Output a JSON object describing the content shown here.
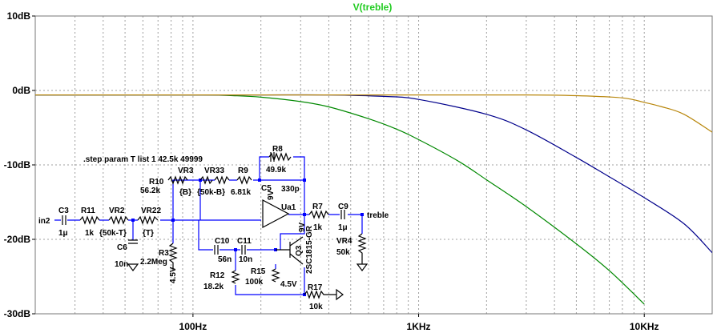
{
  "chart_data": {
    "type": "line",
    "title": "V(treble)",
    "title_color": "#22cc22",
    "x_scale": "log",
    "xlim": [
      20,
      20000
    ],
    "ylim": [
      -30,
      10
    ],
    "x_ticks": [
      {
        "value": 100,
        "label": "100Hz"
      },
      {
        "value": 1000,
        "label": "1KHz"
      },
      {
        "value": 10000,
        "label": "10KHz"
      }
    ],
    "y_ticks": [
      {
        "value": 10,
        "label": "10dB"
      },
      {
        "value": 0,
        "label": "0dB"
      },
      {
        "value": -10,
        "label": "-10dB"
      },
      {
        "value": -20,
        "label": "-20dB"
      },
      {
        "value": -30,
        "label": "-30dB"
      }
    ],
    "grid": true,
    "series": [
      {
        "color": "#008800",
        "x": [
          20,
          50,
          100,
          150,
          200,
          300,
          400,
          600,
          800,
          1000,
          1500,
          2000,
          3000,
          5000,
          7000,
          10000
        ],
        "y": [
          -0.6,
          -0.6,
          -0.6,
          -0.7,
          -0.9,
          -1.5,
          -2.2,
          -3.8,
          -5.2,
          -6.6,
          -9.5,
          -12.0,
          -15.6,
          -20.6,
          -24.2,
          -28.7
        ]
      },
      {
        "color": "#00008b",
        "x": [
          20,
          100,
          200,
          400,
          700,
          1000,
          2000,
          3000,
          5000,
          7000,
          10000,
          15000,
          20000
        ],
        "y": [
          -0.6,
          -0.6,
          -0.6,
          -0.6,
          -0.8,
          -1.2,
          -3.2,
          -5.3,
          -9.0,
          -11.6,
          -14.4,
          -17.9,
          -21.8
        ]
      },
      {
        "color": "#b8860b",
        "x": [
          20,
          100,
          1000,
          3000,
          5000,
          8000,
          10000,
          12000,
          15000,
          20000
        ],
        "y": [
          -0.6,
          -0.6,
          -0.6,
          -0.6,
          -0.7,
          -1.0,
          -1.6,
          -2.2,
          -3.2,
          -5.6
        ]
      }
    ]
  },
  "schematic": {
    "step_directive": ".step param T list 1 42.5k 49999",
    "net_labels": {
      "input": "in2",
      "output": "treble"
    },
    "components": {
      "C3": {
        "name": "C3",
        "value": "1μ"
      },
      "R11": {
        "name": "R11",
        "value": "1k"
      },
      "VR2": {
        "name": "VR2",
        "value": "{50k-T}"
      },
      "VR22": {
        "name": "VR22",
        "value": "{T}"
      },
      "C6": {
        "name": "C6",
        "value": "10n"
      },
      "R10": {
        "name": "R10",
        "value": "56.2k"
      },
      "VR3": {
        "name": "VR3",
        "value": "{B}"
      },
      "VR33": {
        "name": "VR33",
        "value": "{50k-B}"
      },
      "R9": {
        "name": "R9",
        "value": "6.81k"
      },
      "R8": {
        "name": "R8",
        "value": "49.9k"
      },
      "C5": {
        "name": "C5",
        "value": "330p"
      },
      "R3": {
        "name": "R3",
        "value": "2.2Meg"
      },
      "U1": {
        "name": "Ua1",
        "value": "9V"
      },
      "R7": {
        "name": "R7",
        "value": "1k"
      },
      "C9": {
        "name": "C9",
        "value": "1μ"
      },
      "VR4": {
        "name": "VR4",
        "value": "50k"
      },
      "C10": {
        "name": "C10",
        "value": "56n"
      },
      "C11": {
        "name": "C11",
        "value": "10n"
      },
      "Q3": {
        "name": "Q3",
        "value": "2SC1815-GR"
      },
      "R12": {
        "name": "R12",
        "value": "18.2k"
      },
      "R15": {
        "name": "R15",
        "value": "100k"
      },
      "R17": {
        "name": "R17",
        "value": "10k"
      }
    },
    "bias_labels": {
      "bias1": "4.5V",
      "bias2": "4.5V",
      "q_supply": "9V"
    }
  }
}
